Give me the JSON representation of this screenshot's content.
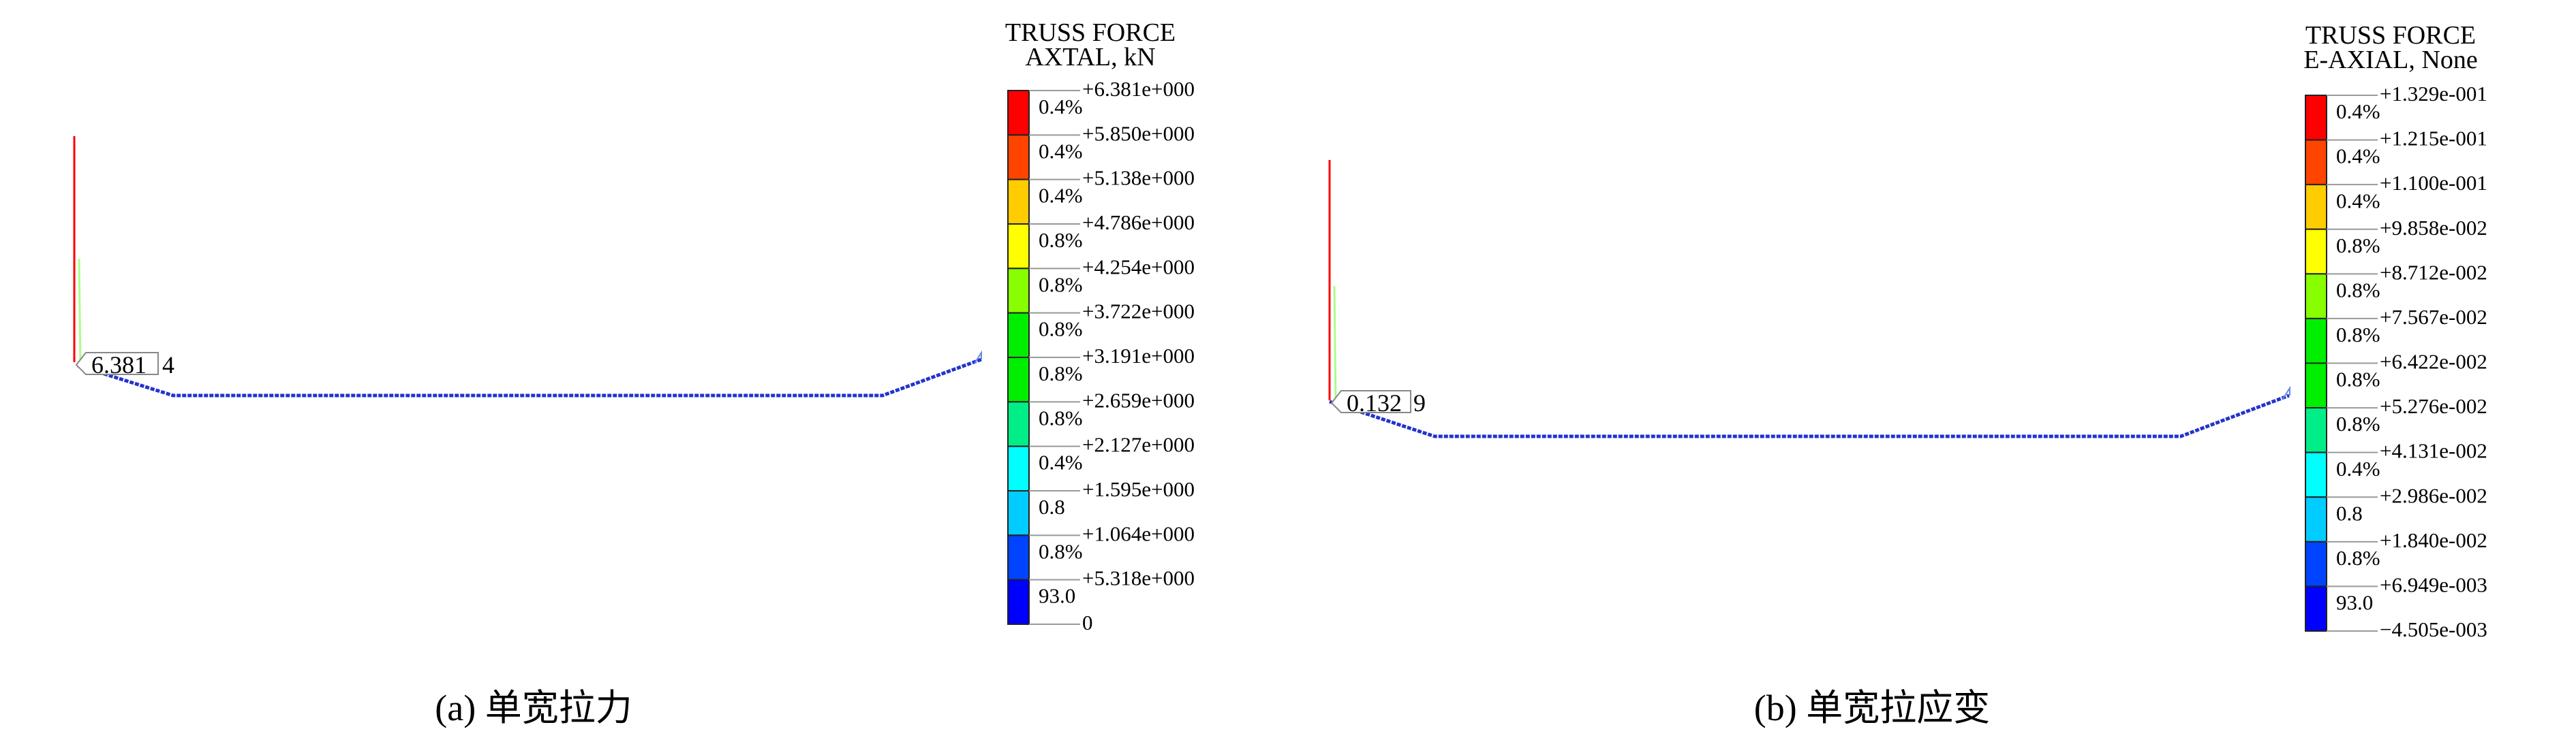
{
  "panels": [
    {
      "id": "a",
      "caption": "(a) 单宽拉力",
      "probe_label": "6.381",
      "probe_suffix": "4",
      "legend": {
        "title_line1": "TRUSS  FORCE",
        "title_line2": "AXTAL, kN",
        "ticks": [
          "+6.381e+000",
          "+5.850e+000",
          "+5.138e+000",
          "+4.786e+000",
          "+4.254e+000",
          "+3.722e+000",
          "+3.191e+000",
          "+2.659e+000",
          "+2.127e+000",
          "+1.595e+000",
          "+1.064e+000",
          "+5.318e+000",
          "0"
        ],
        "percents": [
          "0.4%",
          "0.4%",
          "0.4%",
          "0.8%",
          "0.8%",
          "0.8%",
          "0.8%",
          "0.8%",
          "0.4%",
          "0.8",
          "0.8%",
          "93.0"
        ]
      }
    },
    {
      "id": "b",
      "caption": "(b) 单宽拉应变",
      "probe_label": "0.132",
      "probe_suffix": "9",
      "legend": {
        "title_line1": "TRUSS  FORCE",
        "title_line2": "E-AXIAL, None",
        "ticks": [
          "+1.329e-001",
          "+1.215e-001",
          "+1.100e-001",
          "+9.858e-002",
          "+8.712e-002",
          "+7.567e-002",
          "+6.422e-002",
          "+5.276e-002",
          "+4.131e-002",
          "+2.986e-002",
          "+1.840e-002",
          "+6.949e-003",
          "−4.505e-003"
        ],
        "percents": [
          "0.4%",
          "0.4%",
          "0.4%",
          "0.8%",
          "0.8%",
          "0.8%",
          "0.8%",
          "0.8%",
          "0.4%",
          "0.8",
          "0.8%",
          "93.0"
        ]
      }
    }
  ],
  "colors": {
    "bands": [
      "#ff0000",
      "#ff4400",
      "#ffcc00",
      "#ffff00",
      "#88ff00",
      "#00ee00",
      "#00ee00",
      "#00ee88",
      "#00ffff",
      "#00ccff",
      "#0044ff",
      "#0000ff"
    ],
    "structure": "#2233cc",
    "wall_high": "#ff0000",
    "wall_mid": "#aaff88"
  }
}
